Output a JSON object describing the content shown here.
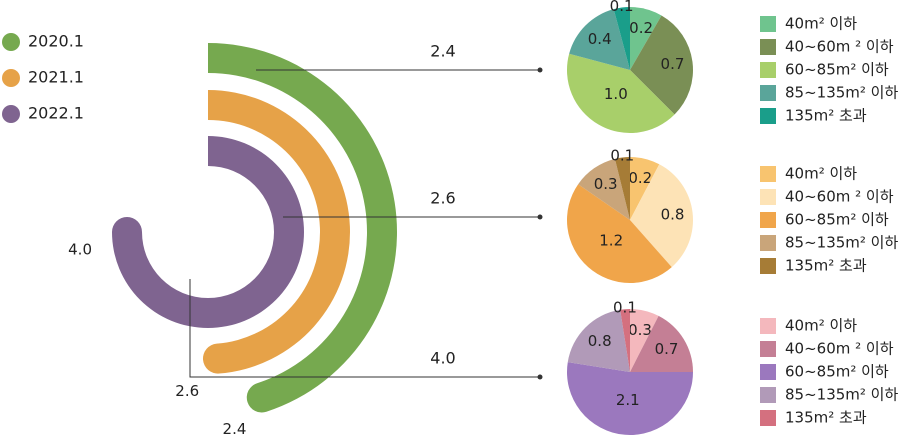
{
  "chart_data": [
    {
      "type": "radial-bar",
      "series": [
        {
          "name": "2020.1",
          "value": 2.4,
          "color": "#76a94f"
        },
        {
          "name": "2021.1",
          "value": 2.6,
          "color": "#e6a248"
        },
        {
          "name": "2022.1",
          "value": 4.0,
          "color": "#7f6490"
        }
      ],
      "legend": "left"
    },
    {
      "type": "pie",
      "label": "2.4",
      "categories": [
        "40m² 이하",
        "40~60m ² 이하",
        "60~85m² 이하",
        "85~135m² 이하",
        "135m² 초과"
      ],
      "values": [
        0.2,
        0.7,
        1.0,
        0.4,
        0.1
      ],
      "colors": [
        "#6fc48e",
        "#7a8f55",
        "#a8cf6a",
        "#5aa59a",
        "#1a9e8a"
      ]
    },
    {
      "type": "pie",
      "label": "2.6",
      "categories": [
        "40m² 이하",
        "40~60m ² 이하",
        "60~85m² 이하",
        "85~135m² 이하",
        "135m² 초과"
      ],
      "values": [
        0.2,
        0.8,
        1.2,
        0.3,
        0.1
      ],
      "colors": [
        "#f8c46f",
        "#fde3b6",
        "#f0a54a",
        "#c9a57a",
        "#a67c36"
      ]
    },
    {
      "type": "pie",
      "label": "4.0",
      "categories": [
        "40m² 이하",
        "40~60m ² 이하",
        "60~85m² 이하",
        "85~135m² 이하",
        "135m² 초과"
      ],
      "values": [
        0.3,
        0.7,
        2.1,
        0.8,
        0.1
      ],
      "colors": [
        "#f4b8bd",
        "#c47f95",
        "#9b78be",
        "#b19ab8",
        "#d4707f"
      ]
    }
  ]
}
